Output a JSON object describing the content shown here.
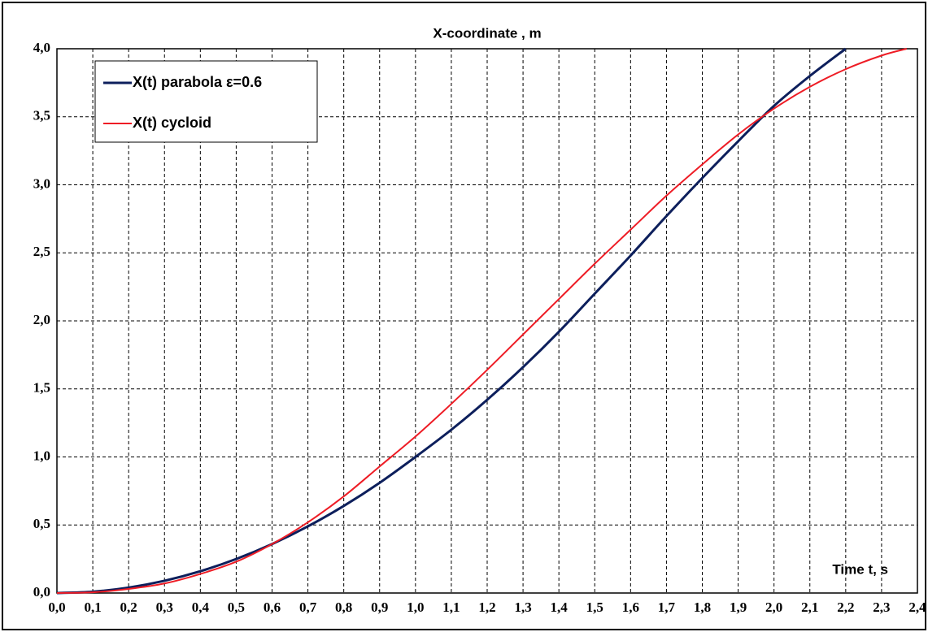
{
  "chart_data": {
    "type": "line",
    "title": "X-coordinate , m",
    "x_label": "Time t, s",
    "xlim": [
      0,
      2.4
    ],
    "ylim": [
      0,
      4
    ],
    "xticks": [
      {
        "value": 0,
        "label": "0,0"
      },
      {
        "value": 0.1,
        "label": "0,1"
      },
      {
        "value": 0.2,
        "label": "0,2"
      },
      {
        "value": 0.3,
        "label": "0,3"
      },
      {
        "value": 0.4,
        "label": "0,4"
      },
      {
        "value": 0.5,
        "label": "0,5"
      },
      {
        "value": 0.6,
        "label": "0,6"
      },
      {
        "value": 0.7,
        "label": "0,7"
      },
      {
        "value": 0.8,
        "label": "0,8"
      },
      {
        "value": 0.9,
        "label": "0,9"
      },
      {
        "value": 1.0,
        "label": "1,0"
      },
      {
        "value": 1.1,
        "label": "1,1"
      },
      {
        "value": 1.2,
        "label": "1,2"
      },
      {
        "value": 1.3,
        "label": "1,3"
      },
      {
        "value": 1.4,
        "label": "1,4"
      },
      {
        "value": 1.5,
        "label": "1,5"
      },
      {
        "value": 1.6,
        "label": "1,6"
      },
      {
        "value": 1.7,
        "label": "1,7"
      },
      {
        "value": 1.8,
        "label": "1,8"
      },
      {
        "value": 1.9,
        "label": "1,9"
      },
      {
        "value": 2.0,
        "label": "2,0"
      },
      {
        "value": 2.1,
        "label": "2,1"
      },
      {
        "value": 2.2,
        "label": "2,2"
      },
      {
        "value": 2.3,
        "label": "2,3"
      },
      {
        "value": 2.4,
        "label": "2,4"
      }
    ],
    "yticks": [
      {
        "value": 0,
        "label": "0,0"
      },
      {
        "value": 0.5,
        "label": "0,5"
      },
      {
        "value": 1.0,
        "label": "1,0"
      },
      {
        "value": 1.5,
        "label": "1,5"
      },
      {
        "value": 2.0,
        "label": "2,0"
      },
      {
        "value": 2.5,
        "label": "2,5"
      },
      {
        "value": 3.0,
        "label": "3,0"
      },
      {
        "value": 3.5,
        "label": "3,5"
      },
      {
        "value": 4.0,
        "label": "4,0"
      }
    ],
    "grid": true,
    "series": [
      {
        "name": "X(t) parabola ε=0.6",
        "color": "#0d1f5c",
        "x": [
          0,
          0.1,
          0.2,
          0.3,
          0.4,
          0.5,
          0.6,
          0.7,
          0.8,
          0.9,
          1.0,
          1.1,
          1.2,
          1.3,
          1.4,
          1.5,
          1.6,
          1.7,
          1.8,
          1.9,
          2.0,
          2.1,
          2.2
        ],
        "values": [
          0,
          0.01,
          0.04,
          0.09,
          0.16,
          0.25,
          0.36,
          0.49,
          0.64,
          0.81,
          1.0,
          1.2,
          1.42,
          1.66,
          1.92,
          2.2,
          2.48,
          2.77,
          3.05,
          3.32,
          3.58,
          3.8,
          4.0
        ]
      },
      {
        "name": "X(t) cycloid",
        "color": "#ee1c25",
        "x": [
          0,
          0.1,
          0.2,
          0.3,
          0.4,
          0.5,
          0.6,
          0.7,
          0.8,
          0.9,
          1.0,
          1.1,
          1.2,
          1.3,
          1.4,
          1.5,
          1.6,
          1.7,
          1.8,
          1.9,
          2.0,
          2.1,
          2.2,
          2.3,
          2.37
        ],
        "values": [
          0,
          0.005,
          0.03,
          0.07,
          0.14,
          0.23,
          0.36,
          0.52,
          0.71,
          0.93,
          1.15,
          1.39,
          1.64,
          1.9,
          2.16,
          2.42,
          2.67,
          2.92,
          3.15,
          3.37,
          3.56,
          3.72,
          3.85,
          3.95,
          4.0
        ]
      }
    ]
  }
}
